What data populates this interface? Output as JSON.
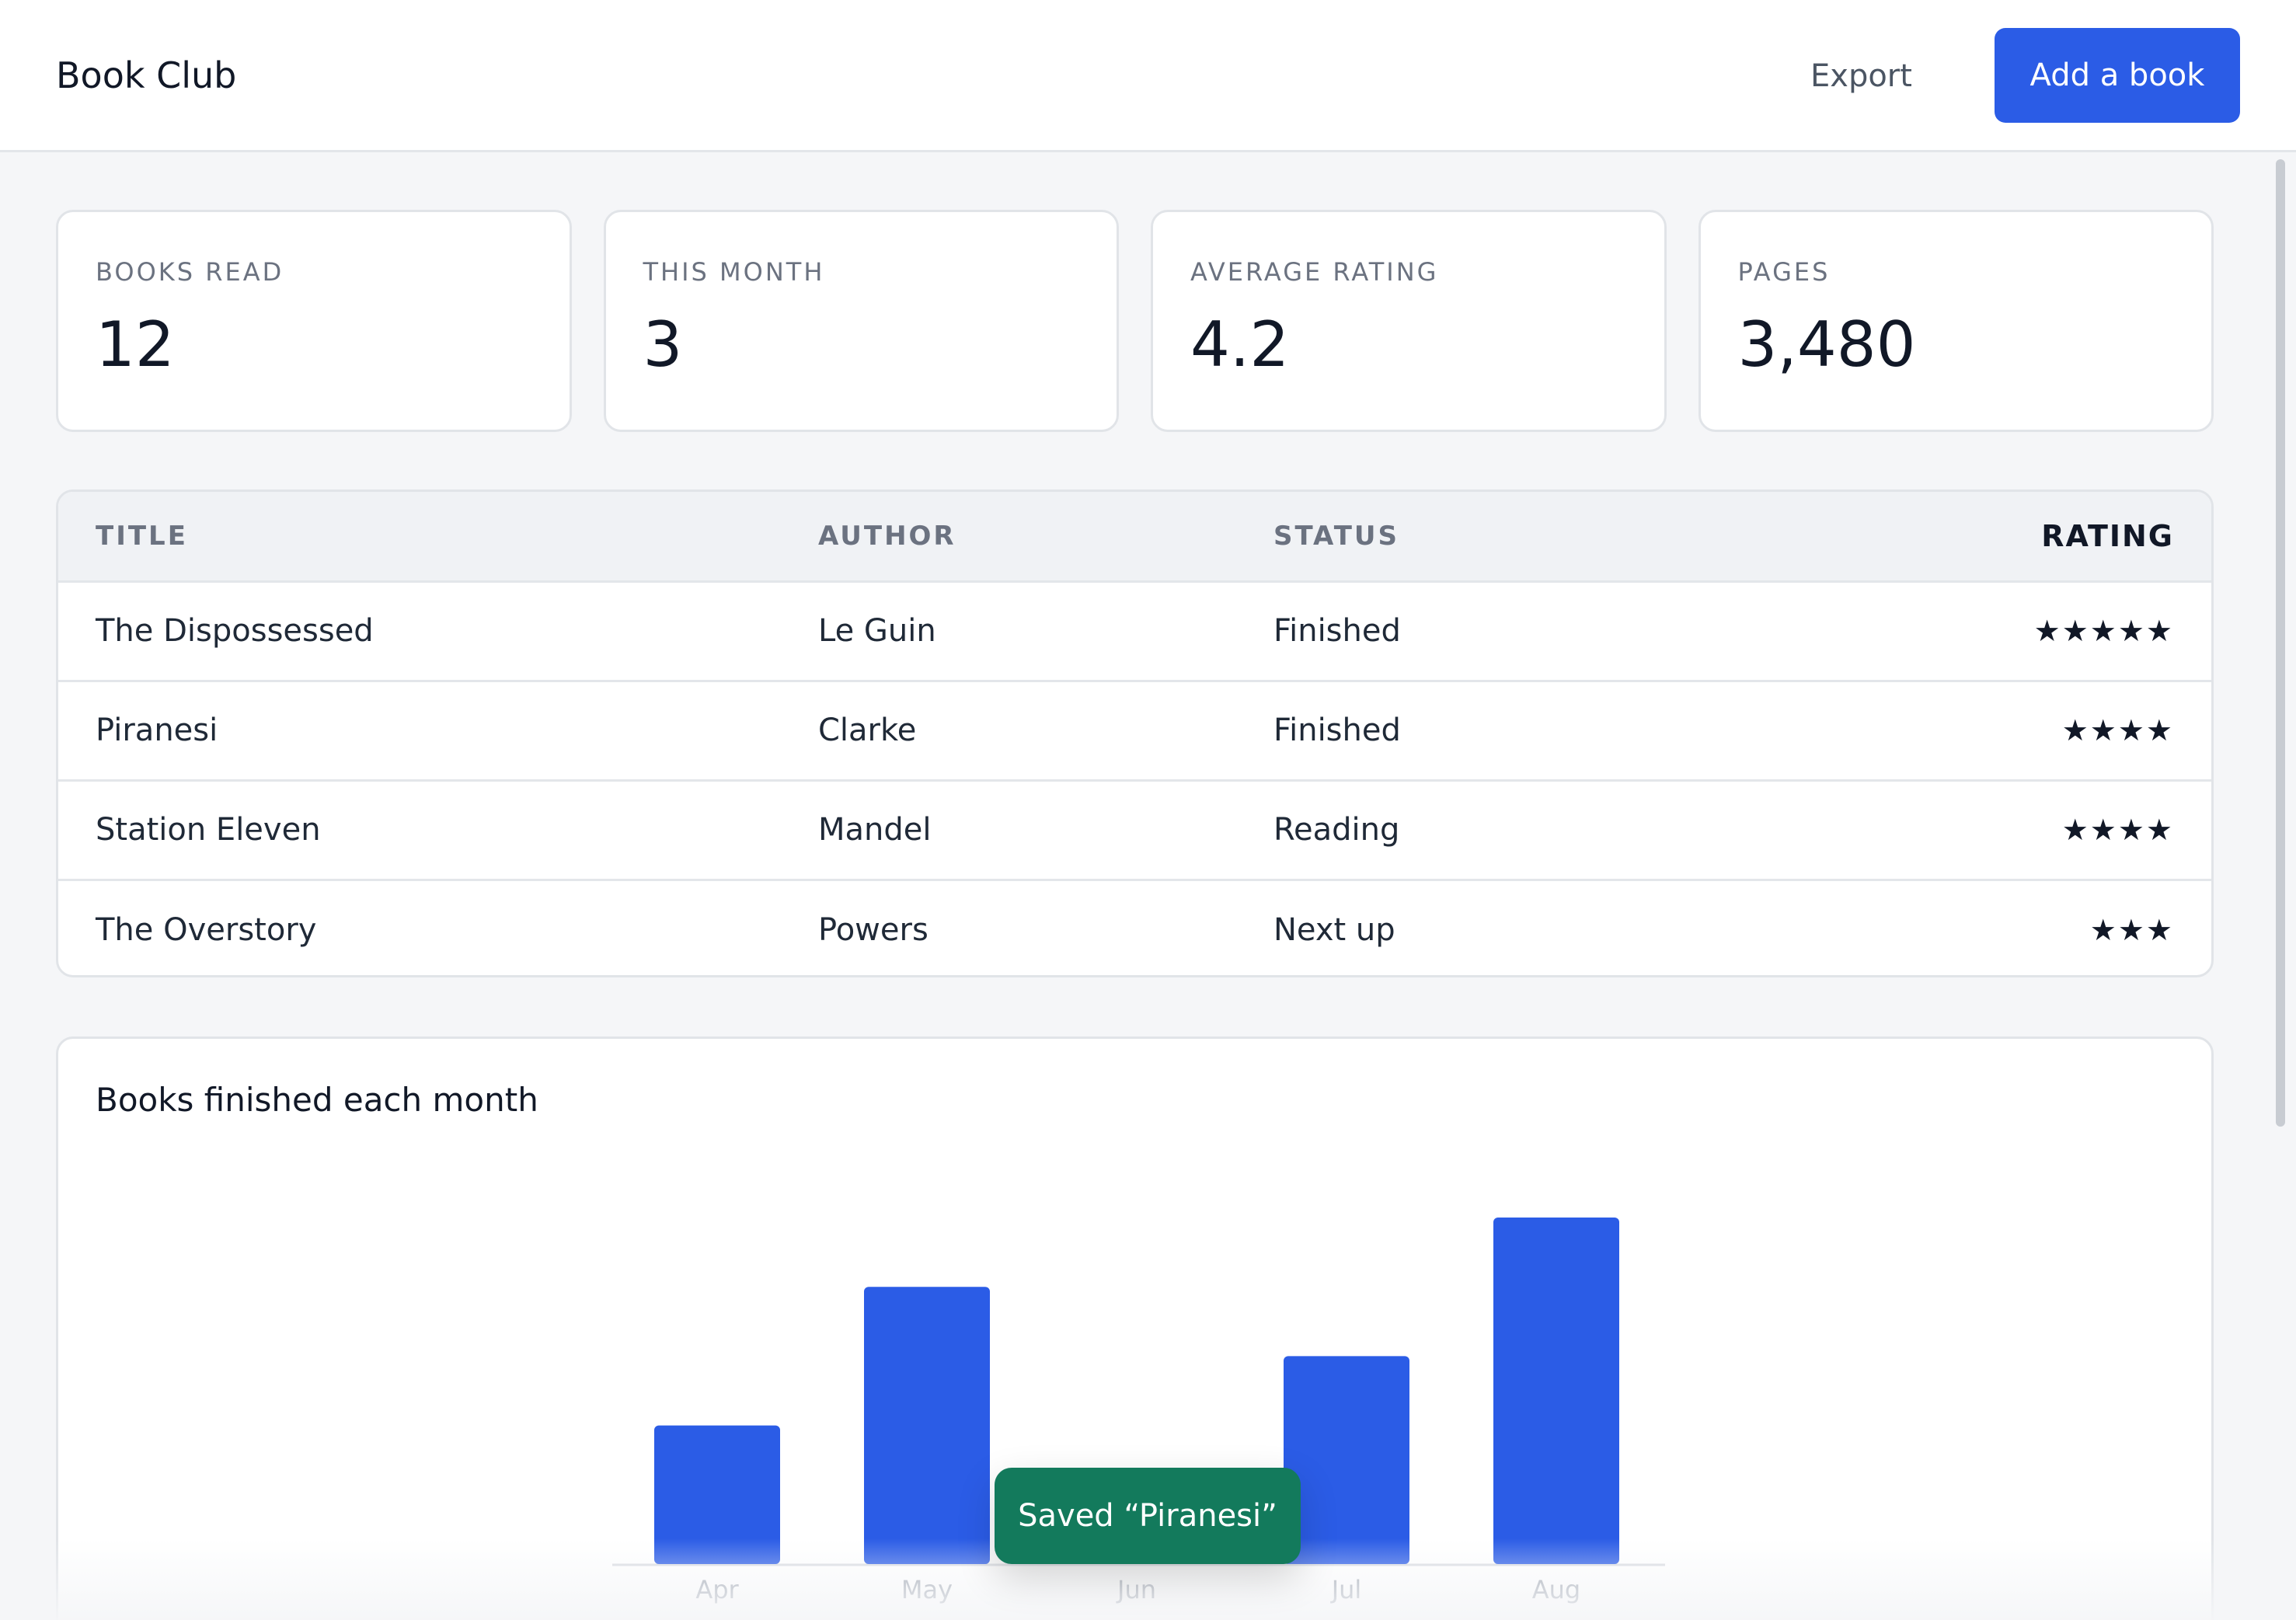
{
  "app": {
    "title": "Book Club"
  },
  "header": {
    "export_label": "Export",
    "add_label": "Add a book"
  },
  "stats": [
    {
      "label": "Books read",
      "value": "12"
    },
    {
      "label": "This month",
      "value": "3"
    },
    {
      "label": "Average rating",
      "value": "4.2"
    },
    {
      "label": "Pages",
      "value": "3,480"
    }
  ],
  "table": {
    "columns": [
      "TITLE",
      "AUTHOR",
      "STATUS",
      "RATING"
    ],
    "rows": [
      {
        "title": "The Dispossessed",
        "author": "Le Guin",
        "status": "Finished",
        "rating": "★★★★★"
      },
      {
        "title": "Piranesi",
        "author": "Clarke",
        "status": "Finished",
        "rating": "★★★★"
      },
      {
        "title": "Station Eleven",
        "author": "Mandel",
        "status": "Reading",
        "rating": "★★★★"
      },
      {
        "title": "The Overstory",
        "author": "Powers",
        "status": "Next up",
        "rating": "★★★"
      }
    ]
  },
  "chart_data": {
    "type": "bar",
    "title": "Books finished each month",
    "categories": [
      "Apr",
      "May",
      "Jun",
      "Jul",
      "Aug"
    ],
    "values": [
      2,
      4,
      0,
      3,
      5
    ],
    "xlabel": "",
    "ylabel": "",
    "grid": false,
    "bar_color": "#2b5ce6"
  },
  "toast": {
    "message": "Saved “Piranesi”",
    "color": "#137a5c"
  },
  "colors": {
    "accent": "#2b5ce6",
    "success": "#137a5c"
  }
}
